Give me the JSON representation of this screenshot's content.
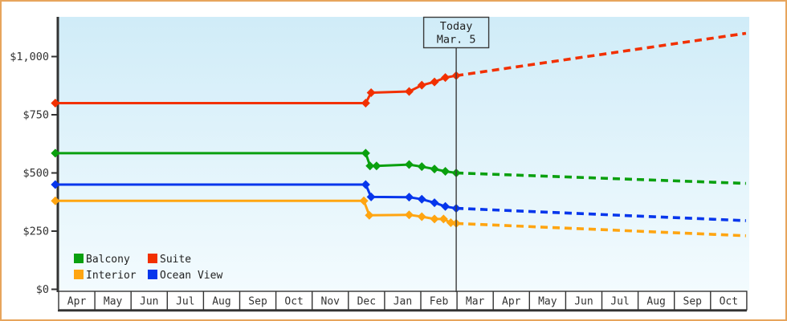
{
  "chart_data": {
    "type": "line",
    "title": "",
    "description": "Cruise cabin price history by category with dashed future projection",
    "x_axis": {
      "unit": "month",
      "labels": [
        "Apr",
        "May",
        "Jun",
        "Jul",
        "Aug",
        "Sep",
        "Oct",
        "Nov",
        "Dec",
        "Jan",
        "Feb",
        "Mar",
        "Apr",
        "May",
        "Jun",
        "Jul",
        "Aug",
        "Sep",
        "Oct"
      ]
    },
    "y_axis": {
      "ticks": [
        {
          "value": 0,
          "label": "$0"
        },
        {
          "value": 250,
          "label": "$250"
        },
        {
          "value": 500,
          "label": "$500"
        },
        {
          "value": 750,
          "label": "$750"
        },
        {
          "value": 1000,
          "label": "$1,000"
        }
      ],
      "range": [
        0,
        1170
      ],
      "grid": false
    },
    "today_marker": {
      "line1": "Today",
      "line2": "Mar. 5",
      "month_index": 11.0
    },
    "series": [
      {
        "name": "Balcony",
        "color": "#0aa00f",
        "points": [
          [
            -0.07,
            585
          ],
          [
            8.5,
            585
          ],
          [
            8.62,
            530
          ],
          [
            8.8,
            530
          ],
          [
            9.7,
            536
          ],
          [
            10.05,
            527
          ],
          [
            10.4,
            517
          ],
          [
            10.7,
            507
          ],
          [
            11.0,
            500
          ]
        ],
        "projection": [
          [
            11.0,
            500
          ],
          [
            19.0,
            455
          ]
        ]
      },
      {
        "name": "Suite",
        "color": "#f23000",
        "points": [
          [
            -0.07,
            800
          ],
          [
            8.5,
            800
          ],
          [
            8.65,
            845
          ],
          [
            9.7,
            850
          ],
          [
            10.05,
            877
          ],
          [
            10.4,
            891
          ],
          [
            10.7,
            910
          ],
          [
            11.0,
            918
          ]
        ],
        "projection": [
          [
            11.0,
            918
          ],
          [
            19.0,
            1100
          ]
        ]
      },
      {
        "name": "Interior",
        "color": "#ffa511",
        "points": [
          [
            -0.07,
            380
          ],
          [
            8.45,
            380
          ],
          [
            8.6,
            318
          ],
          [
            9.7,
            320
          ],
          [
            10.05,
            312
          ],
          [
            10.4,
            302
          ],
          [
            10.65,
            302
          ],
          [
            10.85,
            286
          ],
          [
            11.0,
            283
          ]
        ],
        "projection": [
          [
            11.0,
            283
          ],
          [
            19.0,
            230
          ]
        ]
      },
      {
        "name": "Ocean View",
        "color": "#0636ec",
        "points": [
          [
            -0.07,
            450
          ],
          [
            8.5,
            450
          ],
          [
            8.65,
            397
          ],
          [
            9.7,
            396
          ],
          [
            10.05,
            387
          ],
          [
            10.4,
            372
          ],
          [
            10.7,
            356
          ],
          [
            11.0,
            348
          ]
        ],
        "projection": [
          [
            11.0,
            348
          ],
          [
            19.0,
            295
          ]
        ]
      }
    ],
    "legend": {
      "position": "bottom-left-inside",
      "order": [
        "Balcony",
        "Suite",
        "Interior",
        "Ocean View"
      ]
    },
    "colors": {
      "frame_border": "#e7a55c",
      "plot_bg_top": "#d0ecf8",
      "plot_bg_bottom": "#f3fbfe",
      "axis": "#333333",
      "today": "#3a3a3a",
      "text": "#222222"
    }
  }
}
